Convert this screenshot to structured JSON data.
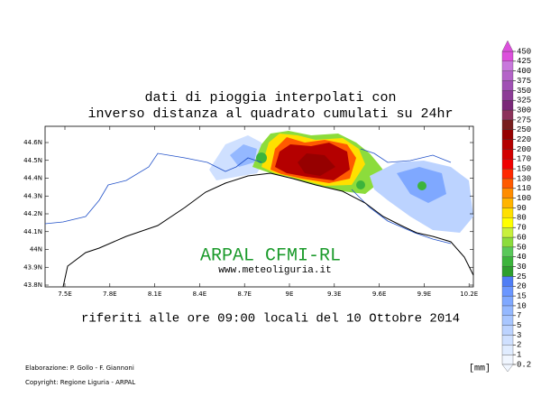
{
  "title": {
    "line1": "dati di pioggia interpolati con",
    "line2": "inverso distanza al quadrato cumulati su 24hr"
  },
  "map": {
    "lat_labels": [
      "44.6N",
      "44.5N",
      "44.4N",
      "44.3N",
      "44.2N",
      "44.1N",
      "44N",
      "43.9N",
      "43.8N"
    ],
    "lon_labels": [
      "7.5E",
      "7.8E",
      "8.1E",
      "8.4E",
      "8.7E",
      "9E",
      "9.3E",
      "9.6E",
      "9.9E",
      "10.2E"
    ],
    "watermark": "ARPAL CFMI-RL",
    "website": "www.meteoliguria.it"
  },
  "caption": "riferiti alle ore 09:00 locali del 10 Ottobre 2014",
  "credits": {
    "elaboration": "Elaborazione: P. Gollo - F. Giannoni",
    "copyright": "Copyright: Regione Liguria - ARPAL"
  },
  "legend": {
    "unit": "[mm]",
    "labels": [
      "0.2",
      "1",
      "2",
      "3",
      "5",
      "7",
      "10",
      "15",
      "20",
      "25",
      "30",
      "40",
      "50",
      "60",
      "70",
      "80",
      "90",
      "100",
      "110",
      "130",
      "150",
      "170",
      "200",
      "220",
      "250",
      "275",
      "300",
      "325",
      "350",
      "375",
      "400",
      "425",
      "450"
    ],
    "colors": [
      "#f0f6ff",
      "#e0ecff",
      "#cfe0ff",
      "#bcd3ff",
      "#a8c6ff",
      "#94b8ff",
      "#7fa8ff",
      "#6a96ff",
      "#4f7df5",
      "#2e9e2e",
      "#3cb43c",
      "#5ac85a",
      "#8cdc3c",
      "#c8f03c",
      "#ffff00",
      "#ffe000",
      "#ffb400",
      "#ff8c00",
      "#ff5a00",
      "#ff2800",
      "#f00000",
      "#d20000",
      "#b40000",
      "#960000",
      "#781e1e",
      "#8c325a",
      "#7a2878",
      "#8c3c96",
      "#a050b4",
      "#b464c8",
      "#c878dc",
      "#dc50dc"
    ]
  }
}
